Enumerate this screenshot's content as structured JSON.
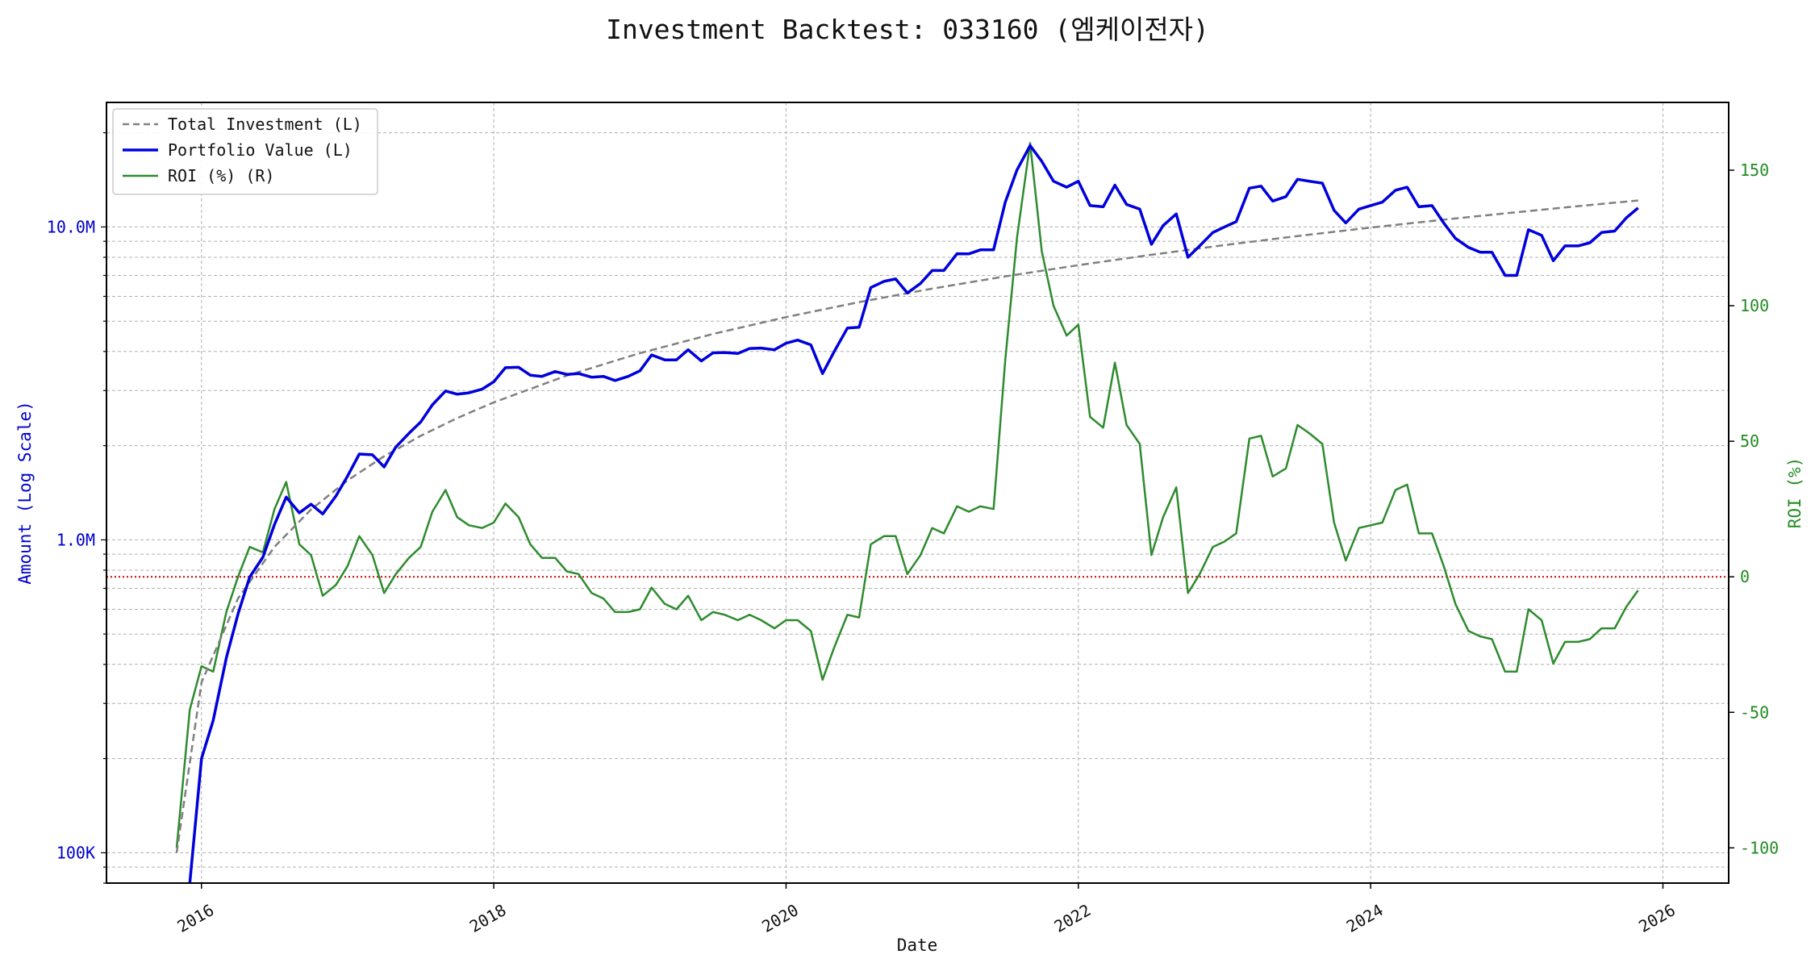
{
  "chart_data": {
    "type": "line",
    "title": "Investment Backtest: 033160 (엠케이전자)",
    "xlabel": "Date",
    "ylabel_left": "Amount (Log Scale)",
    "ylabel_right": "ROI (%)",
    "left_scale": "log",
    "left_ylim": [
      80000,
      25000000
    ],
    "right_ylim": [
      -113,
      175
    ],
    "xlim": [
      2015.35,
      2026.45
    ],
    "x_ticks": [
      2016,
      2018,
      2020,
      2022,
      2024,
      2026
    ],
    "x_tick_labels": [
      "2016",
      "2018",
      "2020",
      "2022",
      "2024",
      "2026"
    ],
    "left_ticks": [
      100000,
      1000000,
      10000000
    ],
    "left_tick_labels": [
      "100K",
      "1.0M",
      "10.0M"
    ],
    "right_ticks": [
      -100,
      -50,
      0,
      50,
      100,
      150
    ],
    "right_tick_labels": [
      "-100",
      "-50",
      "0",
      "50",
      "100",
      "150"
    ],
    "grid": true,
    "legend_position": "top-left",
    "reference_line": {
      "axis": "right",
      "value": 0,
      "style": "dotted",
      "color": "#cc0000"
    },
    "colors": {
      "left_axis": "#0000cc",
      "right_axis": "#228b22",
      "investment": "#808080",
      "portfolio": "#0000dd",
      "roi": "#2e8b2e"
    },
    "series": [
      {
        "name": "Total Investment (L)",
        "axis": "left",
        "style": "dashed",
        "x": [
          2015.83,
          2016.0,
          2016.25,
          2016.5,
          2016.75,
          2017.0,
          2017.25,
          2017.5,
          2017.75,
          2018.0,
          2018.5,
          2019.0,
          2019.5,
          2020.0,
          2020.5,
          2021.0,
          2021.5,
          2022.0,
          2022.5,
          2023.0,
          2023.5,
          2024.0,
          2024.5,
          2025.0,
          2025.5,
          2025.83
        ],
        "y": [
          100000,
          350000,
          650000,
          950000,
          1250000,
          1550000,
          1850000,
          2150000,
          2450000,
          2750000,
          3350000,
          3950000,
          4550000,
          5150000,
          5750000,
          6350000,
          6950000,
          7550000,
          8150000,
          8750000,
          9350000,
          9950000,
          10550000,
          11150000,
          11750000,
          12150000
        ]
      },
      {
        "name": "Portfolio Value (L)",
        "axis": "left",
        "style": "solid",
        "x": [
          2015.92,
          2016.0,
          2016.08,
          2016.17,
          2016.25,
          2016.33,
          2016.42,
          2016.5,
          2016.58,
          2016.67,
          2016.75,
          2016.83,
          2016.92,
          2017.0,
          2017.08,
          2017.17,
          2017.25,
          2017.33,
          2017.42,
          2017.5,
          2017.58,
          2017.67,
          2017.75,
          2017.83,
          2017.92,
          2018.0,
          2018.08,
          2018.17,
          2018.25,
          2018.33,
          2018.42,
          2018.5,
          2018.58,
          2018.67,
          2018.75,
          2018.83,
          2018.92,
          2019.0,
          2019.08,
          2019.17,
          2019.25,
          2019.33,
          2019.42,
          2019.5,
          2019.58,
          2019.67,
          2019.75,
          2019.83,
          2019.92,
          2020.0,
          2020.08,
          2020.17,
          2020.25,
          2020.33,
          2020.42,
          2020.5,
          2020.58,
          2020.67,
          2020.75,
          2020.83,
          2020.92,
          2021.0,
          2021.08,
          2021.17,
          2021.25,
          2021.33,
          2021.42,
          2021.5,
          2021.58,
          2021.67,
          2021.75,
          2021.83,
          2021.92,
          2022.0,
          2022.08,
          2022.17,
          2022.25,
          2022.33,
          2022.42,
          2022.5,
          2022.58,
          2022.67,
          2022.75,
          2022.83,
          2022.92,
          2023.0,
          2023.08,
          2023.17,
          2023.25,
          2023.33,
          2023.42,
          2023.5,
          2023.58,
          2023.67,
          2023.75,
          2023.83,
          2023.92,
          2024.0,
          2024.08,
          2024.17,
          2024.25,
          2024.33,
          2024.42,
          2024.5,
          2024.58,
          2024.67,
          2024.75,
          2024.83,
          2024.92,
          2025.0,
          2025.08,
          2025.17,
          2025.25,
          2025.33,
          2025.42,
          2025.5,
          2025.58,
          2025.67,
          2025.75,
          2025.83
        ],
        "y": [
          78000,
          200000,
          265000,
          420000,
          580000,
          760000,
          880000,
          1120000,
          1370000,
          1220000,
          1300000,
          1210000,
          1380000,
          1600000,
          1880000,
          1870000,
          1710000,
          1980000,
          2190000,
          2380000,
          2700000,
          2990000,
          2920000,
          2950000,
          3030000,
          3200000,
          3550000,
          3560000,
          3360000,
          3330000,
          3450000,
          3380000,
          3400000,
          3310000,
          3330000,
          3230000,
          3330000,
          3470000,
          3900000,
          3760000,
          3760000,
          4050000,
          3730000,
          3960000,
          3970000,
          3940000,
          4090000,
          4100000,
          4050000,
          4250000,
          4350000,
          4200000,
          3400000,
          4000000,
          4750000,
          4780000,
          6400000,
          6700000,
          6820000,
          6150000,
          6600000,
          7260000,
          7260000,
          8210000,
          8200000,
          8450000,
          8450000,
          12000000,
          15200000,
          18200000,
          16200000,
          14000000,
          13400000,
          14000000,
          11700000,
          11600000,
          13600000,
          11800000,
          11400000,
          8800000,
          10100000,
          11000000,
          8000000,
          8700000,
          9600000,
          10000000,
          10400000,
          13300000,
          13500000,
          12100000,
          12500000,
          14200000,
          14000000,
          13800000,
          11300000,
          10300000,
          11400000,
          11700000,
          12000000,
          13100000,
          13400000,
          11600000,
          11700000,
          10300000,
          9200000,
          8600000,
          8300000,
          8300000,
          7000000,
          7000000,
          9800000,
          9400000,
          7800000,
          8700000,
          8700000,
          8900000,
          9600000,
          9700000,
          10700000,
          11500000
        ]
      },
      {
        "name": "ROI (%) (R)",
        "axis": "right",
        "style": "solid",
        "x": [
          2015.83,
          2015.92,
          2016.0,
          2016.08,
          2016.17,
          2016.25,
          2016.33,
          2016.42,
          2016.5,
          2016.58,
          2016.67,
          2016.75,
          2016.83,
          2016.92,
          2017.0,
          2017.08,
          2017.17,
          2017.25,
          2017.33,
          2017.42,
          2017.5,
          2017.58,
          2017.67,
          2017.75,
          2017.83,
          2017.92,
          2018.0,
          2018.08,
          2018.17,
          2018.25,
          2018.33,
          2018.42,
          2018.5,
          2018.58,
          2018.67,
          2018.75,
          2018.83,
          2018.92,
          2019.0,
          2019.08,
          2019.17,
          2019.25,
          2019.33,
          2019.42,
          2019.5,
          2019.58,
          2019.67,
          2019.75,
          2019.83,
          2019.92,
          2020.0,
          2020.08,
          2020.17,
          2020.25,
          2020.33,
          2020.42,
          2020.5,
          2020.58,
          2020.67,
          2020.75,
          2020.83,
          2020.92,
          2021.0,
          2021.08,
          2021.17,
          2021.25,
          2021.33,
          2021.42,
          2021.5,
          2021.58,
          2021.67,
          2021.75,
          2021.83,
          2021.92,
          2022.0,
          2022.08,
          2022.17,
          2022.25,
          2022.33,
          2022.42,
          2022.5,
          2022.58,
          2022.67,
          2022.75,
          2022.83,
          2022.92,
          2023.0,
          2023.08,
          2023.17,
          2023.25,
          2023.33,
          2023.42,
          2023.5,
          2023.58,
          2023.67,
          2023.75,
          2023.83,
          2023.92,
          2024.0,
          2024.08,
          2024.17,
          2024.25,
          2024.33,
          2024.42,
          2024.5,
          2024.58,
          2024.67,
          2024.75,
          2024.83,
          2024.92,
          2025.0,
          2025.08,
          2025.17,
          2025.25,
          2025.33,
          2025.42,
          2025.5,
          2025.58,
          2025.67,
          2025.75,
          2025.83
        ],
        "y": [
          -100,
          -49,
          -33,
          -35,
          -13,
          0,
          11,
          9,
          25,
          35,
          12,
          8,
          -7,
          -3,
          4,
          15,
          8,
          -6,
          1,
          7,
          11,
          24,
          32,
          22,
          19,
          18,
          20,
          27,
          22,
          12,
          7,
          7,
          2,
          1,
          -6,
          -8,
          -13,
          -13,
          -12,
          -4,
          -10,
          -12,
          -7,
          -16,
          -13,
          -14,
          -16,
          -14,
          -16,
          -19,
          -16,
          -16,
          -20,
          -38,
          -26,
          -14,
          -15,
          12,
          15,
          15,
          1,
          8,
          18,
          16,
          26,
          24,
          26,
          25,
          80,
          125,
          160,
          120,
          100,
          89,
          93,
          59,
          55,
          79,
          56,
          49,
          8,
          22,
          33,
          -6,
          1,
          11,
          13,
          16,
          51,
          52,
          37,
          40,
          56,
          53,
          49,
          20,
          6,
          18,
          19,
          20,
          32,
          34,
          16,
          16,
          4,
          -10,
          -20,
          -22,
          -23,
          -35,
          -35,
          -12,
          -16,
          -32,
          -24,
          -24,
          -23,
          -19,
          -19,
          -11,
          -5
        ]
      }
    ]
  }
}
